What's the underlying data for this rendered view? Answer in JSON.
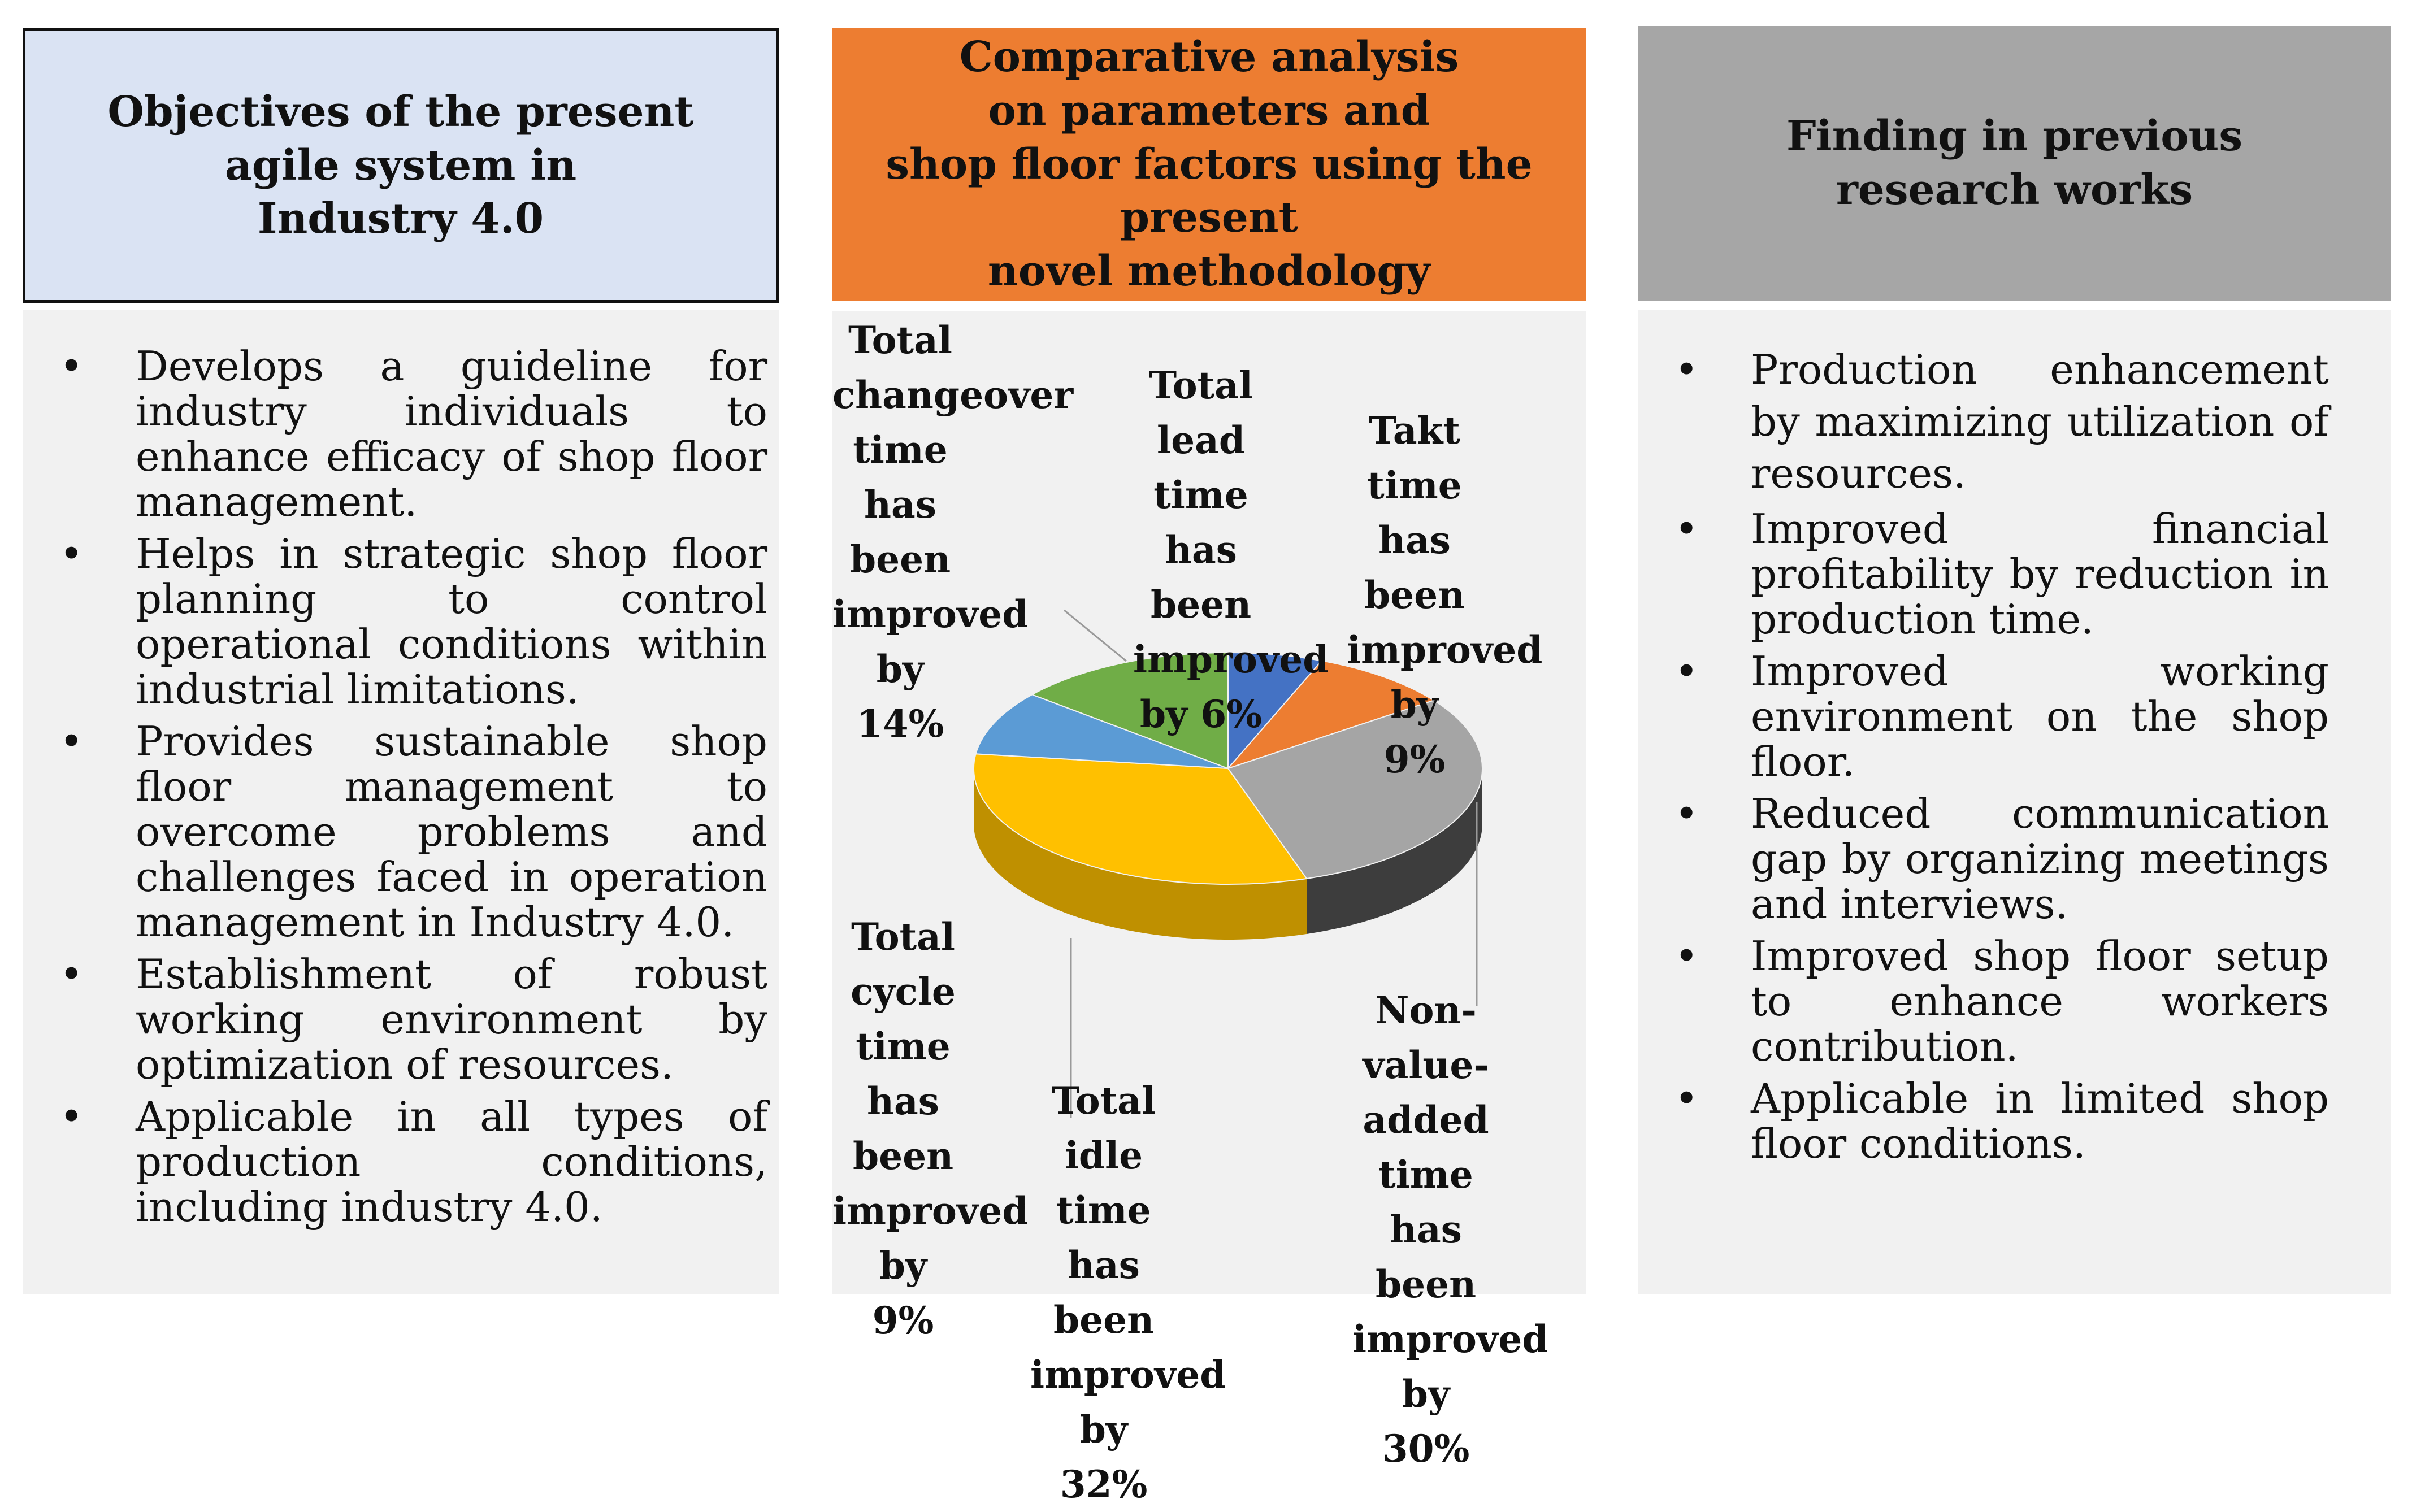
{
  "columns": {
    "objectives": {
      "title": "Objectives of the present\nagile system in\nIndustry 4.0",
      "bullet_symbol": "•",
      "items": [
        "Develops a guideline for industry individuals to enhance efficacy of shop floor management.",
        "Helps in strategic shop floor planning to control operational conditions within industrial limitations.",
        "Provides sustainable shop floor management to overcome problems and challenges faced in operation management in Industry 4.0.",
        "Establishment of robust working environment by optimization of resources.",
        "Applicable in all types of production conditions, including industry 4.0."
      ]
    },
    "comparative": {
      "title": "Comparative analysis\non parameters and\nshop floor factors using the present\nnovel methodology"
    },
    "findings": {
      "title": "Finding in previous\nresearch works",
      "bullet_symbol": "•",
      "items": [
        "Production enhancement by maximizing utilization of resources.",
        "Improved financial profitability by reduction in production time.",
        "Improved working environment on the shop floor.",
        "Reduced communication gap by organizing meetings and interviews.",
        "Improved shop floor setup to enhance workers contribution.",
        "Applicable in limited shop floor conditions."
      ]
    }
  },
  "chart_data": {
    "type": "pie",
    "title": "",
    "slices": [
      {
        "label": "Total lead time\nhas been\nimproved\nby 6%",
        "value": 6,
        "color": "#4472c4",
        "side": "#2f5597"
      },
      {
        "label": "Takt time\nhas been\nimproved by\n9%",
        "value": 9,
        "color": "#ed7d31",
        "side": "#b35c1e"
      },
      {
        "label": "Non-value-\nadded time\nhas been\nimproved by\n30%",
        "value": 30,
        "color": "#a5a5a5",
        "side": "#3d3d3d"
      },
      {
        "label": "Total idle time\nhas been\nimproved by 32%",
        "value": 32,
        "color": "#ffc000",
        "side": "#bf9000"
      },
      {
        "label": "Total cycle\ntime has been\nimproved by\n9%",
        "value": 9,
        "color": "#5b9bd5",
        "side": "#2e75b6"
      },
      {
        "label": "Total\nchangeover\ntime\nhas been\nimproved by\n14%",
        "value": 14,
        "color": "#70ad47",
        "side": "#507e32"
      }
    ]
  }
}
